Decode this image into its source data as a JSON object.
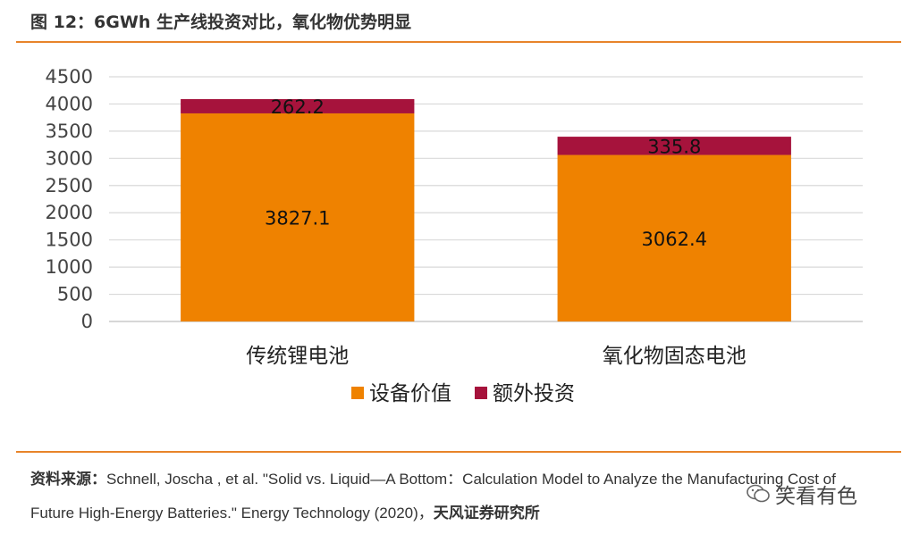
{
  "figure": {
    "title": "图 12：6GWh 生产线投资对比，氧化物优势明显"
  },
  "source": {
    "label": "资料来源：",
    "line1": "Schnell, Joscha , et al. \"Solid vs. Liquid—A Bottom：Calculation Model to Analyze the Manufacturing Cost of",
    "line2": "Future High-Energy Batteries.\" Energy Technology (2020)，",
    "org": "天风证券研究所"
  },
  "watermark": {
    "name": "笑看有色",
    "icon": "wechat-icon"
  },
  "colors": {
    "equipment": "#ef8200",
    "extra": "#a6133c",
    "grid": "#d9d9d9",
    "accent_rule": "#e8842a"
  },
  "chart_data": {
    "type": "bar",
    "stacked": true,
    "title": "",
    "xlabel": "",
    "ylabel": "",
    "categories": [
      "传统锂电池",
      "氧化物固态电池"
    ],
    "series": [
      {
        "name": "设备价值",
        "values": [
          3827.1,
          3062.4
        ],
        "color": "#ef8200"
      },
      {
        "name": "额外投资",
        "values": [
          262.2,
          335.8
        ],
        "color": "#a6133c"
      }
    ],
    "data_labels": [
      [
        "3827.1",
        "3062.4"
      ],
      [
        "262.2",
        "335.8"
      ]
    ],
    "ylim": [
      0,
      4500
    ],
    "yticks": [
      "0",
      "500",
      "1000",
      "1500",
      "2000",
      "2500",
      "3000",
      "3500",
      "4000",
      "4500"
    ],
    "grid": true,
    "legend_position": "bottom"
  }
}
